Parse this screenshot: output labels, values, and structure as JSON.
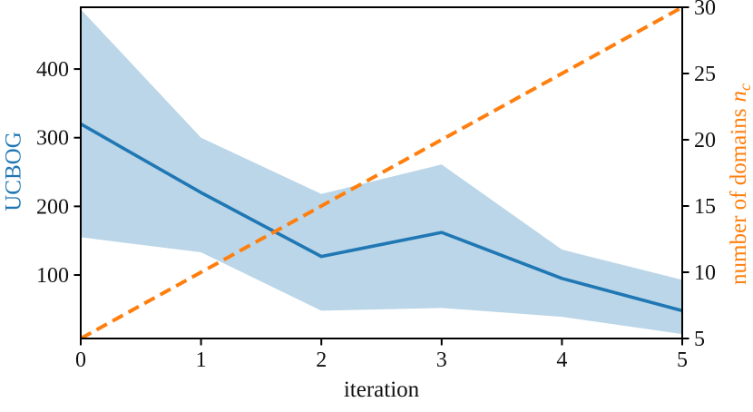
{
  "figure": {
    "background": "#ffffff",
    "spine_color": "#000000",
    "tick_text_color": "#111111"
  },
  "chart_data": {
    "type": "line",
    "title": "",
    "xlabel": "iteration",
    "x": [
      0,
      1,
      2,
      3,
      4,
      5
    ],
    "xlim": [
      0,
      5
    ],
    "xticks": [
      0,
      1,
      2,
      3,
      4,
      5
    ],
    "xtick_labels": [
      "0",
      "1",
      "2",
      "3",
      "4",
      "5"
    ],
    "grid": false,
    "legend_position": "none",
    "left_axis": {
      "label": "UCBOG",
      "color": "#1f77b4",
      "lim": [
        7.5,
        490
      ],
      "tick_values": [
        100,
        200,
        300,
        400
      ],
      "tick_labels": [
        "100",
        "200",
        "300",
        "400"
      ]
    },
    "right_axis": {
      "label_text": "number of domains",
      "label_math_base": "n",
      "label_math_sub": "c",
      "color": "#ff7f0e",
      "lim": [
        5,
        30
      ],
      "tick_values": [
        5,
        10,
        15,
        20,
        25,
        30
      ],
      "tick_labels": [
        "5",
        "10",
        "15",
        "20",
        "25",
        "30"
      ]
    },
    "series": [
      {
        "name": "UCBOG",
        "axis": "left",
        "color": "#1f77b4",
        "line_style": "solid",
        "line_width": 3.6,
        "values": [
          320,
          220,
          127,
          162,
          95,
          48
        ],
        "band": {
          "upper": [
            487,
            300,
            218,
            261,
            137,
            93
          ],
          "lower": [
            155,
            133,
            48,
            52,
            39,
            14
          ],
          "color": "#1f77b4",
          "opacity": 0.3
        }
      },
      {
        "name": "number of domains n_c",
        "axis": "right",
        "color": "#ff7f0e",
        "line_style": "dashed",
        "dash": [
          13,
          7
        ],
        "line_width": 4,
        "values": [
          5,
          10,
          15,
          20,
          25,
          30
        ]
      }
    ]
  }
}
